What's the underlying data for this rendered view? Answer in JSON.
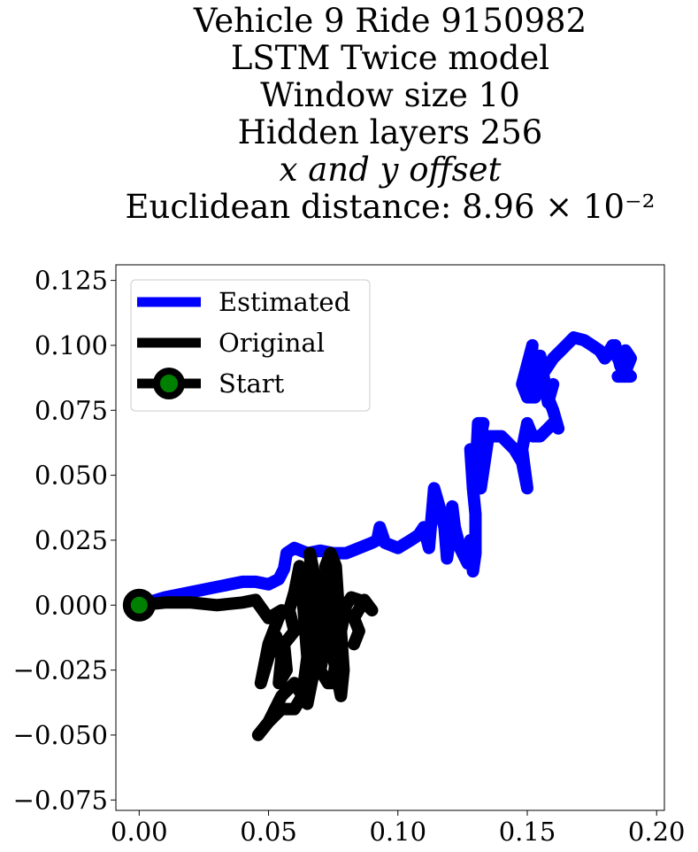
{
  "chart_data": {
    "type": "line",
    "title_lines": [
      "Vehicle 9 Ride 9150982",
      "LSTM Twice model",
      "Window size 10",
      "Hidden layers 256",
      "x and y offset",
      "Euclidean distance: 8.96 × 10⁻²"
    ],
    "xlabel": "",
    "ylabel": "",
    "xlim": [
      -0.009,
      0.203
    ],
    "ylim": [
      -0.079,
      0.131
    ],
    "x_ticks": [
      0.0,
      0.05,
      0.1,
      0.15,
      0.2
    ],
    "x_tick_labels": [
      "0.00",
      "0.05",
      "0.10",
      "0.15",
      "0.20"
    ],
    "y_ticks": [
      0.125,
      0.1,
      0.075,
      0.05,
      0.025,
      0.0,
      -0.025,
      -0.05,
      -0.075
    ],
    "y_tick_labels": [
      "0.125",
      "0.100",
      "0.075",
      "0.050",
      "0.025",
      "0.000",
      "−0.025",
      "−0.050",
      "−0.075"
    ],
    "grid": false,
    "legend_position": "top-left",
    "series": [
      {
        "name": "Estimated",
        "color": "#0000ff",
        "points": [
          [
            0.0,
            0.0
          ],
          [
            0.01,
            0.003
          ],
          [
            0.02,
            0.005
          ],
          [
            0.03,
            0.007
          ],
          [
            0.035,
            0.008
          ],
          [
            0.04,
            0.009
          ],
          [
            0.045,
            0.009
          ],
          [
            0.05,
            0.008
          ],
          [
            0.054,
            0.01
          ],
          [
            0.056,
            0.014
          ],
          [
            0.057,
            0.02
          ],
          [
            0.06,
            0.022
          ],
          [
            0.065,
            0.02
          ],
          [
            0.07,
            0.021
          ],
          [
            0.075,
            0.02
          ],
          [
            0.08,
            0.02
          ],
          [
            0.085,
            0.022
          ],
          [
            0.09,
            0.024
          ],
          [
            0.092,
            0.025
          ],
          [
            0.093,
            0.03
          ],
          [
            0.095,
            0.024
          ],
          [
            0.1,
            0.022
          ],
          [
            0.105,
            0.025
          ],
          [
            0.108,
            0.027
          ],
          [
            0.11,
            0.03
          ],
          [
            0.112,
            0.022
          ],
          [
            0.114,
            0.045
          ],
          [
            0.116,
            0.038
          ],
          [
            0.118,
            0.03
          ],
          [
            0.119,
            0.018
          ],
          [
            0.12,
            0.025
          ],
          [
            0.121,
            0.038
          ],
          [
            0.122,
            0.03
          ],
          [
            0.124,
            0.022
          ],
          [
            0.125,
            0.02
          ],
          [
            0.127,
            0.016
          ],
          [
            0.128,
            0.025
          ],
          [
            0.129,
            0.013
          ],
          [
            0.13,
            0.02
          ],
          [
            0.13,
            0.035
          ],
          [
            0.129,
            0.045
          ],
          [
            0.128,
            0.06
          ],
          [
            0.13,
            0.05
          ],
          [
            0.131,
            0.07
          ],
          [
            0.133,
            0.07
          ],
          [
            0.13,
            0.055
          ],
          [
            0.132,
            0.045
          ],
          [
            0.135,
            0.065
          ],
          [
            0.14,
            0.065
          ],
          [
            0.145,
            0.06
          ],
          [
            0.148,
            0.055
          ],
          [
            0.15,
            0.045
          ],
          [
            0.148,
            0.06
          ],
          [
            0.15,
            0.07
          ],
          [
            0.152,
            0.065
          ],
          [
            0.155,
            0.065
          ],
          [
            0.158,
            0.068
          ],
          [
            0.16,
            0.07
          ],
          [
            0.162,
            0.068
          ],
          [
            0.16,
            0.075
          ],
          [
            0.158,
            0.08
          ],
          [
            0.16,
            0.085
          ],
          [
            0.158,
            0.078
          ],
          [
            0.156,
            0.09
          ],
          [
            0.155,
            0.096
          ],
          [
            0.153,
            0.08
          ],
          [
            0.15,
            0.08
          ],
          [
            0.148,
            0.085
          ],
          [
            0.152,
            0.1
          ],
          [
            0.15,
            0.08
          ],
          [
            0.16,
            0.095
          ],
          [
            0.165,
            0.1
          ],
          [
            0.168,
            0.103
          ],
          [
            0.172,
            0.102
          ],
          [
            0.175,
            0.1
          ],
          [
            0.178,
            0.098
          ],
          [
            0.18,
            0.095
          ],
          [
            0.183,
            0.1
          ],
          [
            0.185,
            0.095
          ],
          [
            0.188,
            0.098
          ],
          [
            0.19,
            0.095
          ],
          [
            0.188,
            0.09
          ],
          [
            0.185,
            0.088
          ],
          [
            0.19,
            0.088
          ],
          [
            0.186,
            0.092
          ],
          [
            0.184,
            0.1
          ],
          [
            0.18,
            0.095
          ]
        ]
      },
      {
        "name": "Original",
        "color": "#000000",
        "points": [
          [
            0.0,
            0.0
          ],
          [
            0.01,
            0.001
          ],
          [
            0.02,
            0.001
          ],
          [
            0.03,
            0.0
          ],
          [
            0.04,
            0.001
          ],
          [
            0.045,
            0.002
          ],
          [
            0.05,
            -0.005
          ],
          [
            0.055,
            -0.002
          ],
          [
            0.05,
            -0.015
          ],
          [
            0.047,
            -0.03
          ],
          [
            0.05,
            -0.02
          ],
          [
            0.053,
            -0.012
          ],
          [
            0.055,
            -0.02
          ],
          [
            0.054,
            -0.03
          ],
          [
            0.057,
            -0.025
          ],
          [
            0.056,
            -0.015
          ],
          [
            0.06,
            -0.01
          ],
          [
            0.058,
            -0.002
          ],
          [
            0.06,
            0.005
          ],
          [
            0.062,
            0.015
          ],
          [
            0.063,
            0.005
          ],
          [
            0.065,
            -0.02
          ],
          [
            0.063,
            -0.035
          ],
          [
            0.06,
            -0.04
          ],
          [
            0.055,
            -0.04
          ],
          [
            0.05,
            -0.045
          ],
          [
            0.046,
            -0.05
          ],
          [
            0.05,
            -0.045
          ],
          [
            0.055,
            -0.035
          ],
          [
            0.06,
            -0.03
          ],
          [
            0.065,
            -0.038
          ],
          [
            0.067,
            -0.028
          ],
          [
            0.068,
            -0.01
          ],
          [
            0.067,
            0.005
          ],
          [
            0.066,
            0.02
          ],
          [
            0.068,
            0.01
          ],
          [
            0.07,
            0.0
          ],
          [
            0.072,
            -0.015
          ],
          [
            0.07,
            -0.025
          ],
          [
            0.073,
            -0.03
          ],
          [
            0.075,
            -0.03
          ],
          [
            0.076,
            -0.02
          ],
          [
            0.074,
            -0.01
          ],
          [
            0.073,
            0.005
          ],
          [
            0.072,
            0.015
          ],
          [
            0.074,
            0.02
          ],
          [
            0.076,
            0.015
          ],
          [
            0.077,
            0.0
          ],
          [
            0.076,
            -0.01
          ],
          [
            0.075,
            -0.02
          ],
          [
            0.077,
            -0.03
          ],
          [
            0.078,
            -0.035
          ],
          [
            0.079,
            -0.025
          ],
          [
            0.078,
            -0.01
          ],
          [
            0.08,
            0.0
          ],
          [
            0.082,
            0.003
          ],
          [
            0.085,
            0.002
          ],
          [
            0.088,
            0.0
          ],
          [
            0.09,
            -0.002
          ],
          [
            0.087,
            0.002
          ],
          [
            0.083,
            -0.005
          ],
          [
            0.085,
            -0.01
          ],
          [
            0.083,
            -0.015
          ]
        ]
      }
    ],
    "start_marker": {
      "name": "Start",
      "x": 0.0,
      "y": 0.0,
      "edge_color": "#000000",
      "fill_color": "#008000"
    }
  }
}
